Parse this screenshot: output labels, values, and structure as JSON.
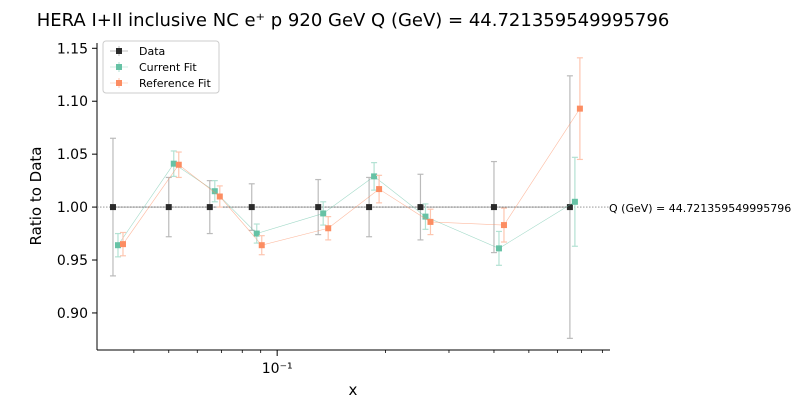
{
  "chart_data": {
    "type": "scatter",
    "title": "HERA I+II inclusive NC e⁺ p 920 GeV Q (GeV) = 44.721359549995796",
    "xlabel": "x",
    "ylabel": "Ratio to Data",
    "x_scale": "log",
    "xlim": [
      0.0316,
      0.84
    ],
    "ylim": [
      0.865,
      1.155
    ],
    "yticks": [
      0.9,
      0.95,
      1.0,
      1.05,
      1.1,
      1.15
    ],
    "ytick_labels": [
      "0.90",
      "0.95",
      "1.00",
      "1.05",
      "1.10",
      "1.15"
    ],
    "xticks_major": [
      0.1
    ],
    "xtick_labels": [
      "10⁻¹"
    ],
    "reference_line": 1.0,
    "annotation": "Q (GeV) = 44.721359549995796",
    "legend_position": "top-left",
    "series": [
      {
        "name": "Data",
        "color": "#2b2b2b",
        "errcolor": "#bbbbbb",
        "points": [
          {
            "x": 0.035,
            "y": 1.0,
            "err": 0.065
          },
          {
            "x": 0.05,
            "y": 1.0,
            "err": 0.028
          },
          {
            "x": 0.065,
            "y": 1.0,
            "err": 0.025
          },
          {
            "x": 0.085,
            "y": 1.0,
            "err": 0.022
          },
          {
            "x": 0.13,
            "y": 1.0,
            "err": 0.026
          },
          {
            "x": 0.18,
            "y": 1.0,
            "err": 0.028
          },
          {
            "x": 0.25,
            "y": 1.0,
            "err": 0.031
          },
          {
            "x": 0.4,
            "y": 1.0,
            "err": 0.043
          },
          {
            "x": 0.65,
            "y": 1.0,
            "err": 0.124
          }
        ]
      },
      {
        "name": "Current Fit",
        "color": "#66c2a5",
        "errcolor": "#b3e2d3",
        "points": [
          {
            "x": 0.035,
            "y": 0.964,
            "err": 0.011
          },
          {
            "x": 0.05,
            "y": 1.041,
            "err": 0.012
          },
          {
            "x": 0.065,
            "y": 1.015,
            "err": 0.01
          },
          {
            "x": 0.085,
            "y": 0.975,
            "err": 0.009
          },
          {
            "x": 0.13,
            "y": 0.994,
            "err": 0.011
          },
          {
            "x": 0.18,
            "y": 1.029,
            "err": 0.013
          },
          {
            "x": 0.25,
            "y": 0.991,
            "err": 0.012
          },
          {
            "x": 0.4,
            "y": 0.961,
            "err": 0.016
          },
          {
            "x": 0.65,
            "y": 1.005,
            "err": 0.042
          }
        ]
      },
      {
        "name": "Reference Fit",
        "color": "#fc8d62",
        "errcolor": "#fdc6b0",
        "points": [
          {
            "x": 0.035,
            "y": 0.965,
            "err": 0.011
          },
          {
            "x": 0.05,
            "y": 1.04,
            "err": 0.012
          },
          {
            "x": 0.065,
            "y": 1.01,
            "err": 0.01
          },
          {
            "x": 0.085,
            "y": 0.964,
            "err": 0.009
          },
          {
            "x": 0.13,
            "y": 0.98,
            "err": 0.011
          },
          {
            "x": 0.18,
            "y": 1.017,
            "err": 0.013
          },
          {
            "x": 0.25,
            "y": 0.986,
            "err": 0.012
          },
          {
            "x": 0.4,
            "y": 0.983,
            "err": 0.016
          },
          {
            "x": 0.65,
            "y": 1.093,
            "err": 0.048
          }
        ]
      }
    ]
  }
}
